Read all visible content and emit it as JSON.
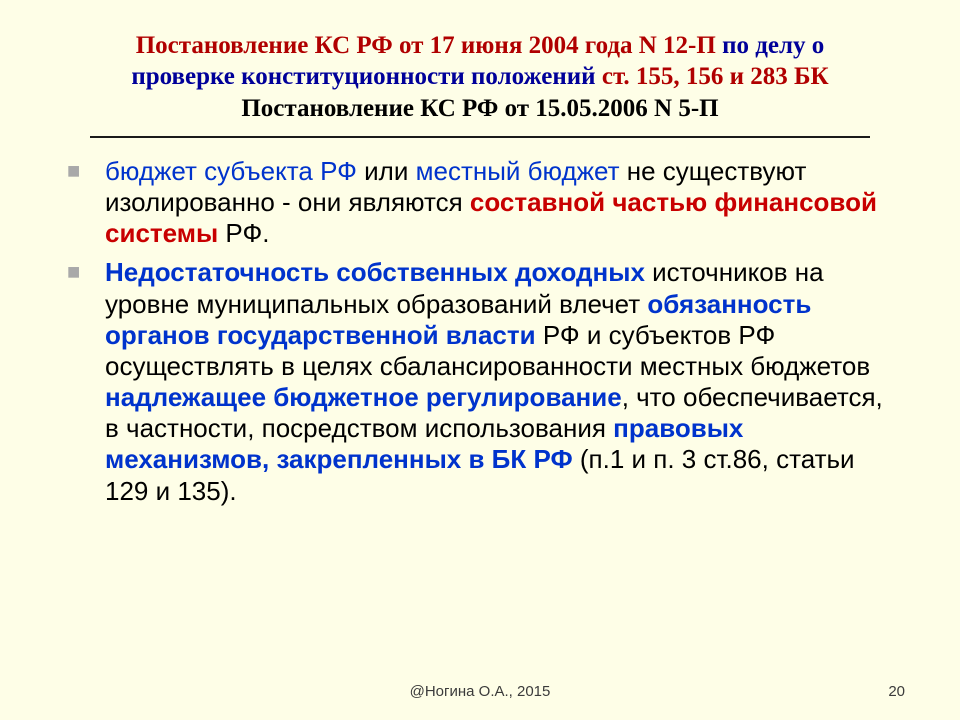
{
  "title": {
    "line1_red": "Постановление КС РФ от 17 июня 2004 года N 12-П ",
    "line1_blue": "по делу о проверке конституционности положений ",
    "line1_red2": "ст. 155, 156 и 283 БК",
    "line2_black": "Постановление КС РФ от 15.05.2006 N 5-П"
  },
  "bullets": {
    "b1": {
      "p1_blue": "бюджет субъекта РФ ",
      "p2": "или ",
      "p3_blue": "местный бюджет ",
      "p4": "не существуют изолированно - они являются ",
      "p5_red_bold": "составной частью финансовой системы ",
      "p6": "РФ."
    },
    "b2": {
      "p1_blue_bold": "Недостаточность собственных доходных",
      "p2": " источников на уровне муниципальных образований влечет ",
      "p3_blue_bold": "обязанность органов государственной власти ",
      "p4": "РФ и субъектов РФ осуществлять в целях сбалансированности местных бюджетов ",
      "p5_blue_bold": "надлежащее бюджетное регулирование",
      "p6": ", что обеспечивается, в частности, посредством использования ",
      "p7_blue_bold": "правовых механизмов, закрепленных в БК РФ ",
      "p8": "(п.1 и п. 3 ст.86, статьи 129 и 135)."
    }
  },
  "footer": "@Ногина О.А., 2015",
  "pageNumber": "20",
  "colors": {
    "background": "#fefee7",
    "titleRed": "#b00000",
    "titleBlue": "#000099",
    "bodyBlue": "#0033cc",
    "bodyRed": "#c80000",
    "bulletGray": "#a9a9a9"
  }
}
